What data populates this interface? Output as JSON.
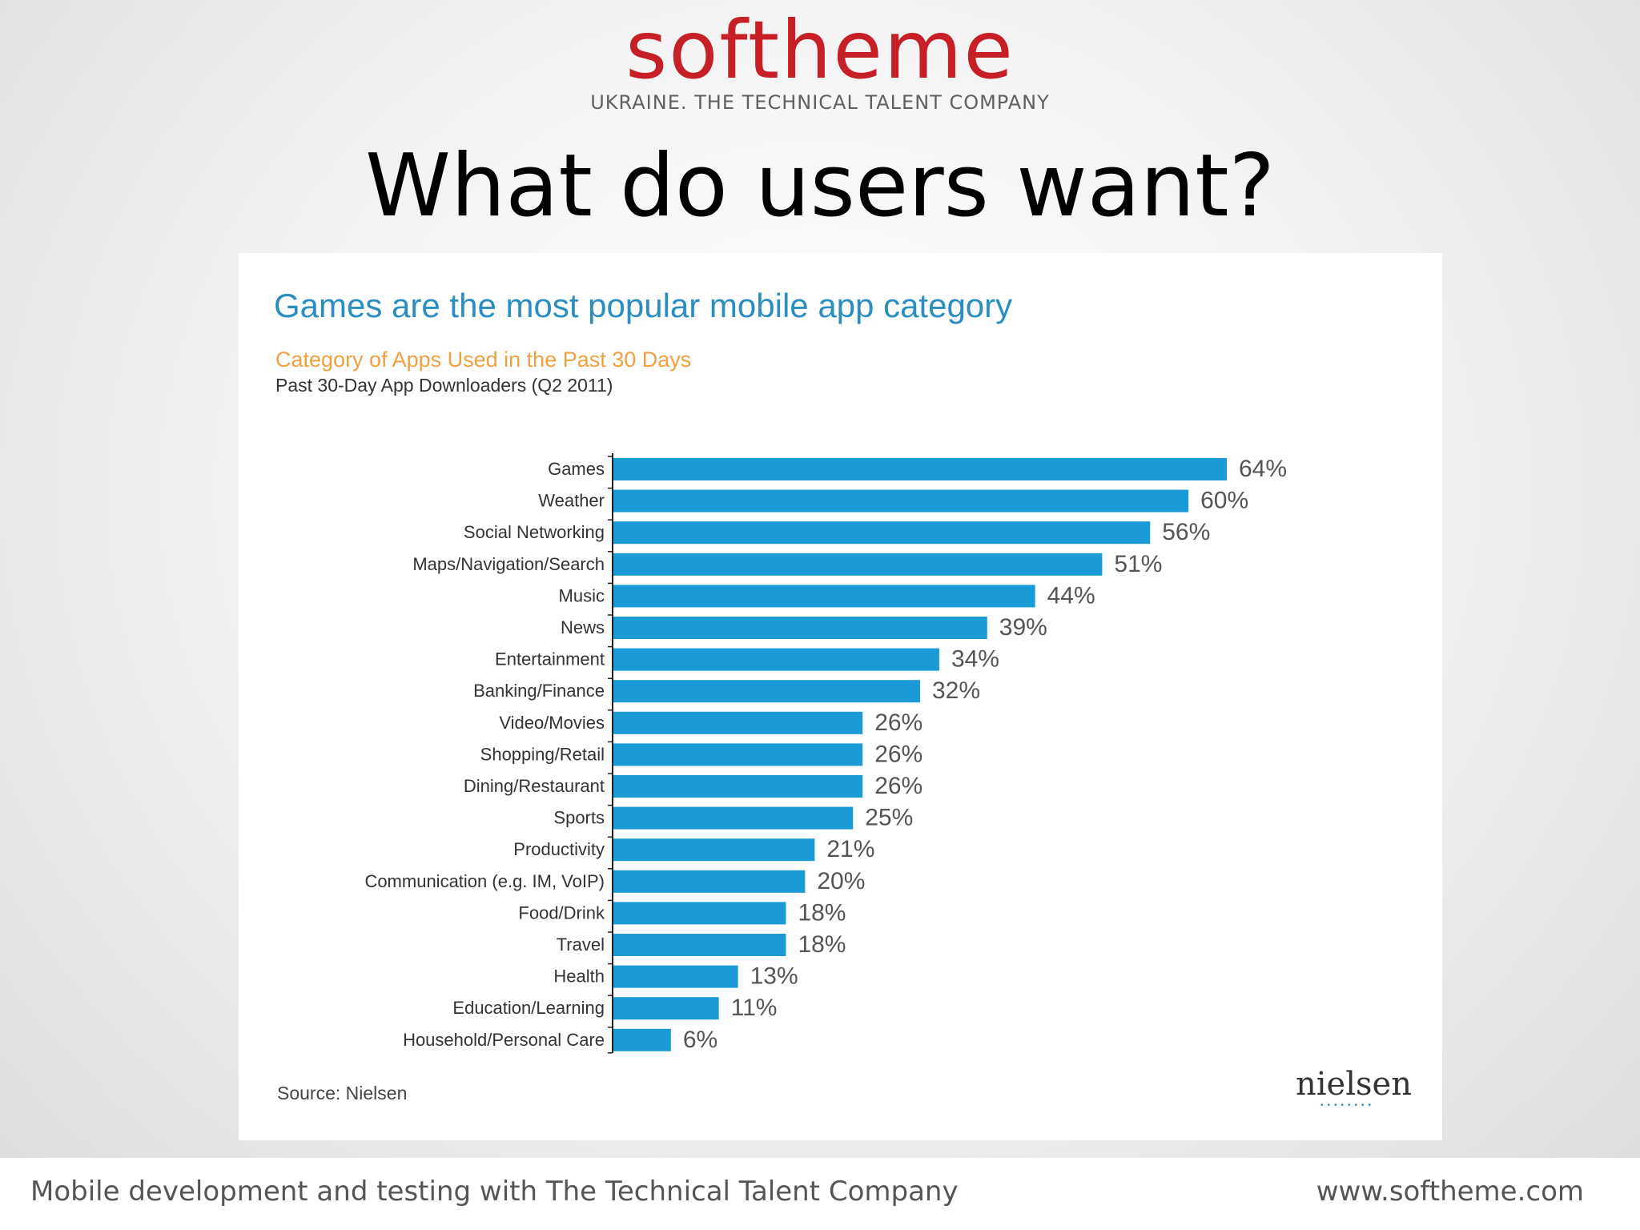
{
  "brand": {
    "logo": "softheme",
    "tagline": "UKRAINE. THE TECHNICAL TALENT COMPANY"
  },
  "slide": {
    "title": "What do users want?"
  },
  "chart_data": {
    "type": "bar",
    "orientation": "horizontal",
    "title": "Games are the most popular mobile app category",
    "subtitle": "Category of Apps Used in the Past 30 Days",
    "note": "Past 30-Day App Downloaders  (Q2 2011)",
    "categories": [
      "Games",
      "Weather",
      "Social Networking",
      "Maps/Navigation/Search",
      "Music",
      "News",
      "Entertainment",
      "Banking/Finance",
      "Video/Movies",
      "Shopping/Retail",
      "Dining/Restaurant",
      "Sports",
      "Productivity",
      "Communication (e.g. IM, VoIP)",
      "Food/Drink",
      "Travel",
      "Health",
      "Education/Learning",
      "Household/Personal Care"
    ],
    "values": [
      64,
      60,
      56,
      51,
      44,
      39,
      34,
      32,
      26,
      26,
      26,
      25,
      21,
      20,
      18,
      18,
      13,
      11,
      6
    ],
    "value_labels": [
      "64%",
      "60%",
      "56%",
      "51%",
      "44%",
      "39%",
      "34%",
      "32%",
      "26%",
      "26%",
      "26%",
      "25%",
      "21%",
      "20%",
      "18%",
      "18%",
      "13%",
      "11%",
      "6%"
    ],
    "xlim": [
      0,
      64
    ],
    "grid": false,
    "color": "#1a9ad6",
    "source": "Source: Nielsen",
    "source_logo": "nielsen"
  },
  "footer": {
    "left": "Mobile development and testing with The Technical Talent Company",
    "right": "www.softheme.com"
  }
}
